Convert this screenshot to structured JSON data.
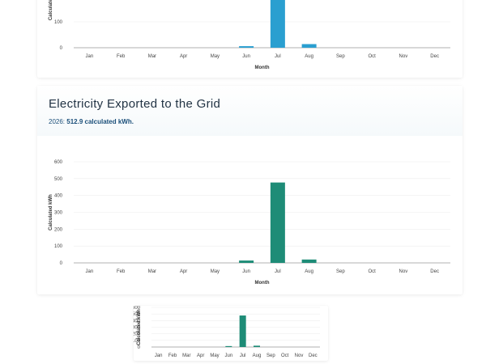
{
  "top_chart": {
    "chart_data": {
      "type": "bar",
      "categories": [
        "Jan",
        "Feb",
        "Mar",
        "Apr",
        "May",
        "Jun",
        "Jul",
        "Aug",
        "Sep",
        "Oct",
        "Nov",
        "Dec"
      ],
      "values": [
        0,
        0,
        0,
        0,
        0,
        6,
        480,
        14,
        0,
        0,
        0,
        0
      ],
      "xlabel": "Month",
      "ylabel": "Calculated",
      "yticks": [
        0,
        100
      ],
      "color": "#2a9fd0"
    }
  },
  "export_card": {
    "title": "Electricity Exported to the Grid",
    "subtitle_year": "2026:",
    "subtitle_value": "512.9 calculated kWh.",
    "chart_data": {
      "type": "bar",
      "categories": [
        "Jan",
        "Feb",
        "Mar",
        "Apr",
        "May",
        "Jun",
        "Jul",
        "Aug",
        "Sep",
        "Oct",
        "Nov",
        "Dec"
      ],
      "values": [
        0,
        0,
        0,
        0,
        0,
        14,
        477,
        20,
        0,
        0,
        0,
        0
      ],
      "xlabel": "Month",
      "ylabel": "Calculated kWh",
      "ylim": [
        0,
        600
      ],
      "yticks": [
        0,
        100,
        200,
        300,
        400,
        500,
        600
      ],
      "color": "#1e8c77"
    }
  },
  "thumb_chart": {
    "chart_data": {
      "type": "bar",
      "categories": [
        "Jan",
        "Feb",
        "Mar",
        "Apr",
        "May",
        "Jun",
        "Jul",
        "Aug",
        "Sep",
        "Oct",
        "Nov",
        "Dec"
      ],
      "values": [
        0,
        0,
        0,
        0,
        0,
        14,
        477,
        20,
        0,
        0,
        0,
        0
      ],
      "xlabel": "Month",
      "ylabel": "Calculated kWh",
      "ylim": [
        0,
        600
      ],
      "yticks": [
        0,
        100,
        200,
        300,
        400,
        500,
        600
      ],
      "color": "#1e8c77"
    }
  }
}
